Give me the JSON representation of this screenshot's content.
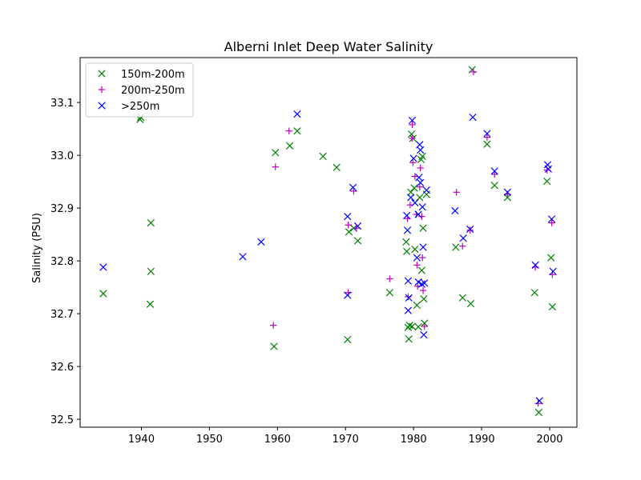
{
  "chart_data": {
    "type": "scatter",
    "title": "Alberni Inlet Deep Water Salinity",
    "xlabel": "",
    "ylabel": "Salinity (PSU)",
    "xlim": [
      1931,
      2004
    ],
    "ylim": [
      32.485,
      33.185
    ],
    "xticks": [
      1940,
      1950,
      1960,
      1970,
      1980,
      1990,
      2000
    ],
    "yticks": [
      32.5,
      32.6,
      32.7,
      32.8,
      32.9,
      33.0,
      33.1
    ],
    "grid": false,
    "legend_position": "top-left",
    "series": [
      {
        "name": "150m-200m",
        "color": "#008000",
        "marker": "x",
        "points": [
          [
            1934.4,
            32.738
          ],
          [
            1939.8,
            33.068
          ],
          [
            1939.9,
            33.072
          ],
          [
            1941.4,
            32.872
          ],
          [
            1941.4,
            32.78
          ],
          [
            1941.3,
            32.718
          ],
          [
            1959.5,
            32.638
          ],
          [
            1959.7,
            33.005
          ],
          [
            1961.8,
            33.018
          ],
          [
            1962.9,
            33.046
          ],
          [
            1966.7,
            32.998
          ],
          [
            1968.7,
            32.977
          ],
          [
            1970.3,
            32.651
          ],
          [
            1970.5,
            32.855
          ],
          [
            1971.2,
            32.862
          ],
          [
            1971.8,
            32.838
          ],
          [
            1976.5,
            32.74
          ],
          [
            1978.9,
            32.836
          ],
          [
            1979.0,
            32.818
          ],
          [
            1979.2,
            32.674
          ],
          [
            1979.4,
            32.678
          ],
          [
            1979.3,
            32.652
          ],
          [
            1979.8,
            32.676
          ],
          [
            1979.6,
            32.93
          ],
          [
            1979.7,
            33.04
          ],
          [
            1979.9,
            33.032
          ],
          [
            1980.1,
            32.938
          ],
          [
            1980.2,
            32.822
          ],
          [
            1980.5,
            32.716
          ],
          [
            1980.7,
            32.675
          ],
          [
            1980.9,
            32.92
          ],
          [
            1981.1,
            32.992
          ],
          [
            1981.3,
            32.998
          ],
          [
            1981.2,
            32.782
          ],
          [
            1981.4,
            32.862
          ],
          [
            1981.5,
            32.728
          ],
          [
            1981.6,
            32.682
          ],
          [
            1981.9,
            32.926
          ],
          [
            1986.2,
            32.826
          ],
          [
            1987.2,
            32.73
          ],
          [
            1988.4,
            32.719
          ],
          [
            1988.6,
            33.162
          ],
          [
            1990.8,
            33.021
          ],
          [
            1991.9,
            32.943
          ],
          [
            1993.8,
            32.92
          ],
          [
            1997.8,
            32.74
          ],
          [
            1998.4,
            32.513
          ],
          [
            1999.6,
            32.951
          ],
          [
            2000.2,
            32.806
          ],
          [
            2000.4,
            32.713
          ]
        ]
      },
      {
        "name": "200m-250m",
        "color": "#bf00bf",
        "marker": "+",
        "points": [
          [
            1959.4,
            32.678
          ],
          [
            1959.7,
            32.978
          ],
          [
            1961.7,
            33.046
          ],
          [
            1970.4,
            32.74
          ],
          [
            1970.4,
            32.868
          ],
          [
            1971.2,
            32.932
          ],
          [
            1971.6,
            32.862
          ],
          [
            1976.5,
            32.766
          ],
          [
            1979.1,
            32.88
          ],
          [
            1979.2,
            32.732
          ],
          [
            1979.5,
            32.906
          ],
          [
            1979.8,
            33.058
          ],
          [
            1979.8,
            33.032
          ],
          [
            1979.9,
            32.986
          ],
          [
            1980.2,
            32.96
          ],
          [
            1980.4,
            32.888
          ],
          [
            1980.5,
            32.792
          ],
          [
            1980.6,
            32.752
          ],
          [
            1980.9,
            32.94
          ],
          [
            1981.0,
            32.976
          ],
          [
            1981.2,
            32.884
          ],
          [
            1981.3,
            32.806
          ],
          [
            1981.4,
            32.744
          ],
          [
            1981.6,
            32.676
          ],
          [
            1986.3,
            32.93
          ],
          [
            1987.2,
            32.828
          ],
          [
            1988.3,
            32.858
          ],
          [
            1988.8,
            33.158
          ],
          [
            1990.8,
            33.034
          ],
          [
            1991.9,
            32.964
          ],
          [
            1993.8,
            32.926
          ],
          [
            1997.9,
            32.788
          ],
          [
            1998.3,
            32.53
          ],
          [
            1999.6,
            32.972
          ],
          [
            2000.3,
            32.872
          ],
          [
            2000.4,
            32.774
          ]
        ]
      },
      {
        "name": ">250m",
        "color": "#0000ff",
        "marker": "x",
        "points": [
          [
            1934.4,
            32.788
          ],
          [
            1954.9,
            32.808
          ],
          [
            1957.6,
            32.836
          ],
          [
            1962.9,
            33.078
          ],
          [
            1970.3,
            32.884
          ],
          [
            1970.3,
            32.735
          ],
          [
            1971.1,
            32.939
          ],
          [
            1971.8,
            32.866
          ],
          [
            1979.0,
            32.886
          ],
          [
            1979.1,
            32.858
          ],
          [
            1979.2,
            32.762
          ],
          [
            1979.3,
            32.73
          ],
          [
            1979.2,
            32.706
          ],
          [
            1979.6,
            32.92
          ],
          [
            1979.8,
            33.066
          ],
          [
            1980.0,
            32.994
          ],
          [
            1980.2,
            32.91
          ],
          [
            1980.5,
            32.806
          ],
          [
            1980.7,
            32.76
          ],
          [
            1980.7,
            32.888
          ],
          [
            1980.8,
            32.958
          ],
          [
            1980.9,
            33.02
          ],
          [
            1981.0,
            33.01
          ],
          [
            1981.0,
            32.948
          ],
          [
            1981.2,
            32.756
          ],
          [
            1981.3,
            32.902
          ],
          [
            1981.4,
            32.826
          ],
          [
            1981.5,
            32.66
          ],
          [
            1981.6,
            32.758
          ],
          [
            1981.9,
            32.934
          ],
          [
            1986.1,
            32.895
          ],
          [
            1987.3,
            32.843
          ],
          [
            1988.3,
            32.86
          ],
          [
            1988.7,
            33.072
          ],
          [
            1990.8,
            33.041
          ],
          [
            1991.9,
            32.97
          ],
          [
            1993.8,
            32.93
          ],
          [
            1997.9,
            32.792
          ],
          [
            1998.5,
            32.535
          ],
          [
            1999.7,
            32.982
          ],
          [
            1999.8,
            32.974
          ],
          [
            2000.3,
            32.879
          ],
          [
            2000.5,
            32.78
          ]
        ]
      }
    ]
  }
}
